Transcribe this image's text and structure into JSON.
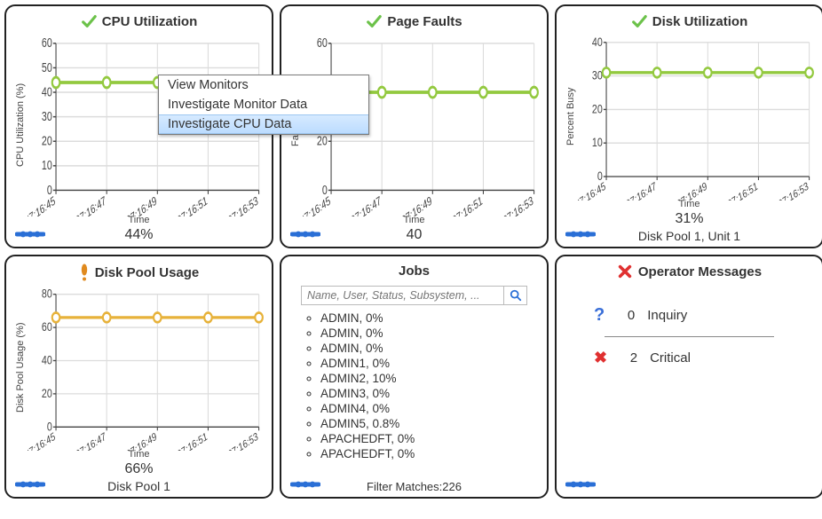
{
  "time_ticks": [
    "07:16:45",
    "07:16:47",
    "07:16:49",
    "07:16:51",
    "07:16:53"
  ],
  "xlabel": "Time",
  "panels": {
    "cpu": {
      "title": "CPU Utilization",
      "status": "ok",
      "ylabel": "CPU Utilization (%)",
      "ylim": [
        0,
        60
      ],
      "ytick_step": 10,
      "points": [
        44,
        44,
        44,
        44,
        44
      ],
      "line_color": "#93c93f",
      "marker_color": "#93c93f",
      "marker_fill": "#ffffff",
      "grid_color": "#dcdcdc",
      "value": "44%"
    },
    "faults": {
      "title": "Page Faults",
      "status": "ok",
      "ylabel": "Faults (/s)",
      "ylim": [
        0,
        60
      ],
      "ytick_step": 20,
      "points": [
        40,
        40,
        40,
        40,
        40
      ],
      "line_color": "#93c93f",
      "marker_color": "#93c93f",
      "marker_fill": "#ffffff",
      "grid_color": "#dcdcdc",
      "value": "40"
    },
    "disk_util": {
      "title": "Disk Utilization",
      "status": "ok",
      "ylabel": "Percent Busy",
      "ylim": [
        0,
        40
      ],
      "ytick_step": 10,
      "points": [
        31,
        31,
        31,
        31,
        31
      ],
      "line_color": "#93c93f",
      "marker_color": "#93c93f",
      "marker_fill": "#ffffff",
      "grid_color": "#dcdcdc",
      "value": "31%",
      "subtitle": "Disk Pool 1, Unit 1"
    },
    "disk_pool": {
      "title": "Disk Pool Usage",
      "status": "warn",
      "ylabel": "Disk Pool Usage (%)",
      "ylim": [
        0,
        80
      ],
      "ytick_step": 20,
      "points": [
        66,
        66,
        66,
        66,
        66
      ],
      "line_color": "#e7b23a",
      "marker_color": "#e7b23a",
      "marker_fill": "#ffffff",
      "grid_color": "#dcdcdc",
      "value": "66%",
      "subtitle": "Disk Pool 1"
    },
    "jobs": {
      "title": "Jobs",
      "search_placeholder": "Name, User, Status, Subsystem, ...",
      "items": [
        "ADMIN, 0%",
        "ADMIN, 0%",
        "ADMIN, 0%",
        "ADMIN1, 0%",
        "ADMIN2, 10%",
        "ADMIN3, 0%",
        "ADMIN4, 0%",
        "ADMIN5, 0.8%",
        "APACHEDFT, 0%",
        "APACHEDFT, 0%"
      ],
      "filter_label": "Filter Matches:",
      "filter_count": "226"
    },
    "messages": {
      "title": "Operator Messages",
      "status": "error",
      "rows": [
        {
          "icon": "question",
          "count": "0",
          "label": "Inquiry"
        },
        {
          "icon": "x",
          "count": "2",
          "label": "Critical"
        }
      ]
    }
  },
  "context_menu": {
    "items": [
      "View Monitors",
      "Investigate Monitor Data",
      "Investigate CPU Data"
    ],
    "selected_index": 2
  },
  "colors": {
    "ok": "#6cc24a",
    "warn": "#e08a1e",
    "error": "#e03030",
    "handle": "#2a6fd6"
  }
}
